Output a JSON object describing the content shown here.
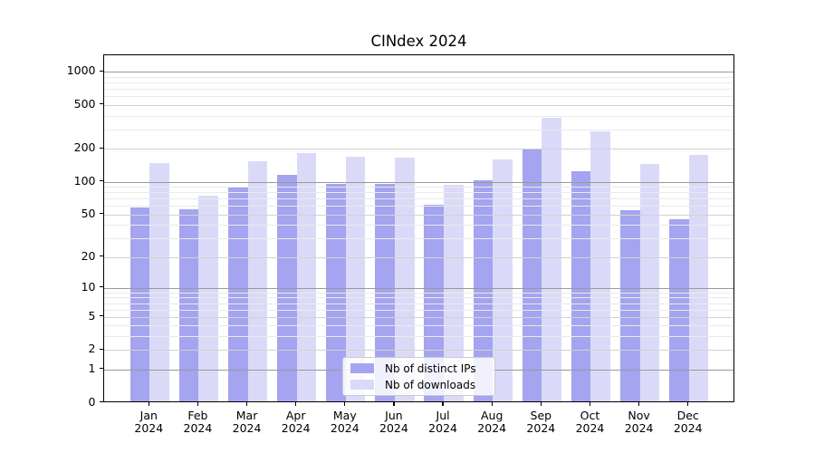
{
  "chart_data": {
    "type": "bar",
    "title": "CINdex 2024",
    "categories": [
      "Jan 2024",
      "Feb 2024",
      "Mar 2024",
      "Apr 2024",
      "May 2024",
      "Jun 2024",
      "Jul 2024",
      "Aug 2024",
      "Sep 2024",
      "Oct 2024",
      "Nov 2024",
      "Dec 2024"
    ],
    "series": [
      {
        "name": "Nb of distinct IPs",
        "color": "#a4a4f0",
        "values": [
          56,
          54,
          86,
          112,
          93,
          92,
          60,
          100,
          193,
          122,
          53,
          44
        ]
      },
      {
        "name": "Nb of downloads",
        "color": "#dadaf8",
        "values": [
          145,
          72,
          150,
          179,
          163,
          160,
          91,
          154,
          370,
          282,
          142,
          171
        ]
      }
    ],
    "xlabel": "",
    "ylabel": "",
    "yscale": "symlog",
    "yticks": [
      0,
      1,
      2,
      5,
      10,
      20,
      50,
      100,
      200,
      500,
      1000
    ],
    "ylim": [
      0,
      1450
    ],
    "grid": true,
    "legend_position": "lower-center"
  },
  "colors": {
    "bar_distinct_ips": "#a4a4f0",
    "bar_downloads": "#dadaf8",
    "grid_major": "#9a9a9a",
    "grid_labeled": "#d2d2d2",
    "grid_minor": "#eaeaea",
    "spine": "#000000",
    "background": "#ffffff"
  }
}
